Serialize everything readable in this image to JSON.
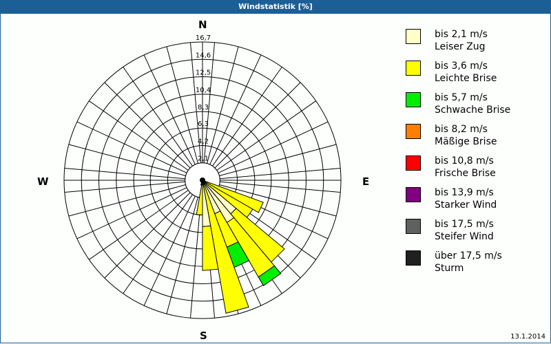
{
  "header": {
    "title": "Windstatistik [%]"
  },
  "compass": {
    "north": "N",
    "east": "E",
    "south": "S",
    "west": "W"
  },
  "footer": {
    "date": "13.1.2014"
  },
  "legend": [
    {
      "range": "bis 2,1 m/s",
      "name": "Leiser Zug",
      "color": "#ffffc8"
    },
    {
      "range": "bis 3,6 m/s",
      "name": "Leichte Brise",
      "color": "#ffff00"
    },
    {
      "range": "bis 5,7 m/s",
      "name": "Schwache Brise",
      "color": "#00ee00"
    },
    {
      "range": "bis 8,2 m/s",
      "name": "Mäßige Brise",
      "color": "#ff8000"
    },
    {
      "range": "bis 10,8 m/s",
      "name": "Frische Brise",
      "color": "#ff0000"
    },
    {
      "range": "bis 13,9 m/s",
      "name": "Starker Wind",
      "color": "#800080"
    },
    {
      "range": "bis 17,5 m/s",
      "name": "Steifer Wind",
      "color": "#606060"
    },
    {
      "range": "über 17,5 m/s",
      "name": "Sturm",
      "color": "#202020"
    }
  ],
  "chart_data": {
    "type": "wind-rose",
    "title": "Windstatistik [%]",
    "unit": "%",
    "rings": [
      "2,1",
      "4,2",
      "6,3",
      "8,3",
      "10,4",
      "12,5",
      "14,6",
      "16,7"
    ],
    "ring_values": [
      2.1,
      4.2,
      6.3,
      8.3,
      10.4,
      12.5,
      14.6,
      16.7
    ],
    "rmax": 16.7,
    "sector_width_deg": 10,
    "speed_classes": [
      "bis 2,1 m/s",
      "bis 3,6 m/s",
      "bis 5,7 m/s",
      "bis 8,2 m/s",
      "bis 10,8 m/s",
      "bis 13,9 m/s",
      "bis 17,5 m/s",
      "über 17,5 m/s"
    ],
    "sectors": [
      {
        "bearing": 115,
        "values": [
          0,
          7.8,
          0,
          0,
          0,
          0,
          0,
          0
        ]
      },
      {
        "bearing": 125,
        "values": [
          0,
          7.0,
          0,
          0,
          0,
          0,
          0,
          0
        ]
      },
      {
        "bearing": 135,
        "values": [
          5.3,
          7.6,
          0,
          0,
          0,
          0,
          0,
          0
        ]
      },
      {
        "bearing": 145,
        "values": [
          5.9,
          7.6,
          1.2,
          0,
          0,
          0,
          0,
          0
        ]
      },
      {
        "bearing": 155,
        "values": [
          4.3,
          4.3,
          2.6,
          0,
          0,
          0,
          0,
          0
        ]
      },
      {
        "bearing": 165,
        "values": [
          0,
          16.3,
          0,
          0,
          0,
          0,
          0,
          0
        ]
      },
      {
        "bearing": 175,
        "values": [
          5.6,
          5.3,
          0,
          0,
          0,
          0,
          0,
          0
        ]
      },
      {
        "bearing": 185,
        "values": [
          0,
          4.2,
          0,
          0,
          0,
          0,
          0,
          0
        ]
      },
      {
        "bearing": 195,
        "values": [
          0,
          0.6,
          0,
          0,
          0,
          0,
          0,
          0
        ]
      }
    ]
  }
}
